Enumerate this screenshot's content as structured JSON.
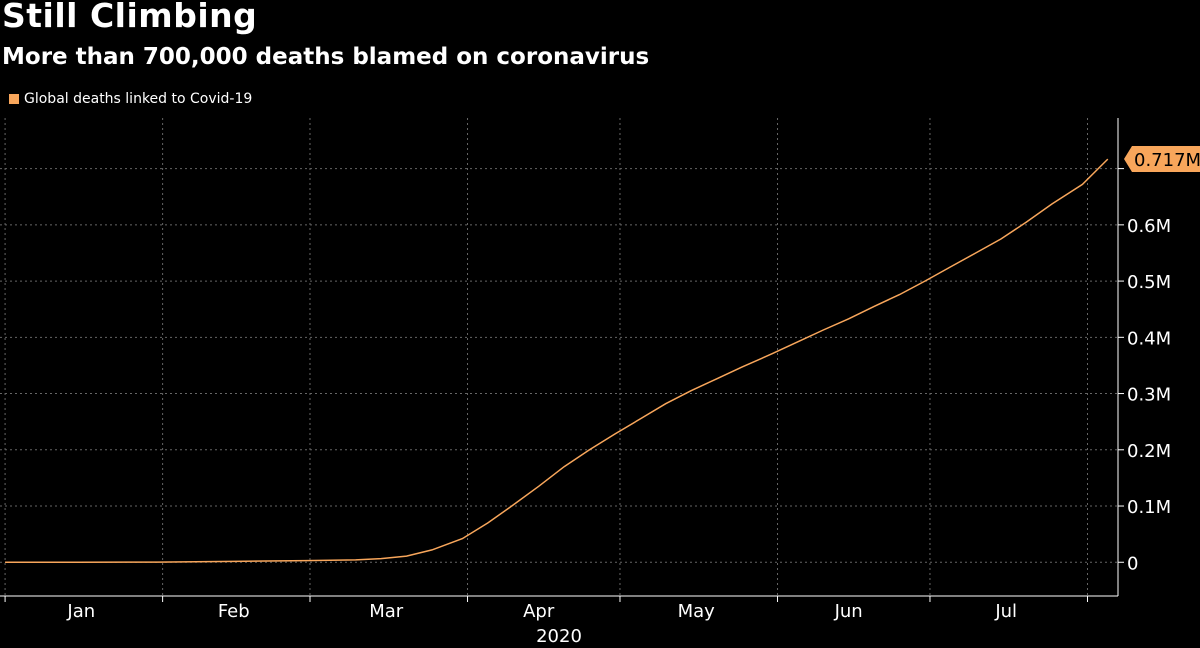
{
  "chart_data": {
    "type": "line",
    "title": "Still Climbing",
    "subtitle": "More than 700,000 deaths blamed on coronavirus",
    "xlabel": "2020",
    "ylabel": "",
    "x_ticks": [
      "Jan",
      "Feb",
      "Mar",
      "Apr",
      "May",
      "Jun",
      "Jul"
    ],
    "y_ticks": [
      "0",
      "0.1M",
      "0.2M",
      "0.3M",
      "0.4M",
      "0.5M",
      "0.6M"
    ],
    "ylim": [
      -60000,
      790000
    ],
    "xlim": [
      "2019-12-31",
      "2020-08-07"
    ],
    "grid": true,
    "legend_position": "top-left",
    "last_value_label": "0.717M",
    "colors": {
      "series": "#f8a65b",
      "background": "#000000",
      "grid": "#666666"
    },
    "series": [
      {
        "name": "Global deaths linked to Covid-19",
        "x": [
          "2020-01-01",
          "2020-01-15",
          "2020-01-31",
          "2020-02-15",
          "2020-02-29",
          "2020-03-05",
          "2020-03-10",
          "2020-03-15",
          "2020-03-20",
          "2020-03-25",
          "2020-03-31",
          "2020-04-05",
          "2020-04-10",
          "2020-04-15",
          "2020-04-20",
          "2020-04-25",
          "2020-04-30",
          "2020-05-05",
          "2020-05-10",
          "2020-05-15",
          "2020-05-20",
          "2020-05-25",
          "2020-05-31",
          "2020-06-05",
          "2020-06-10",
          "2020-06-15",
          "2020-06-20",
          "2020-06-25",
          "2020-06-30",
          "2020-07-05",
          "2020-07-10",
          "2020-07-15",
          "2020-07-20",
          "2020-07-25",
          "2020-07-31",
          "2020-08-05"
        ],
        "values": [
          0,
          0,
          200,
          1500,
          3000,
          3400,
          4200,
          6500,
          11000,
          22000,
          42000,
          70000,
          102000,
          135000,
          170000,
          200000,
          228000,
          255000,
          282000,
          305000,
          326000,
          347000,
          371000,
          392000,
          413000,
          433000,
          455000,
          476000,
          500000,
          525000,
          550000,
          575000,
          605000,
          637000,
          672000,
          717000
        ]
      }
    ]
  }
}
